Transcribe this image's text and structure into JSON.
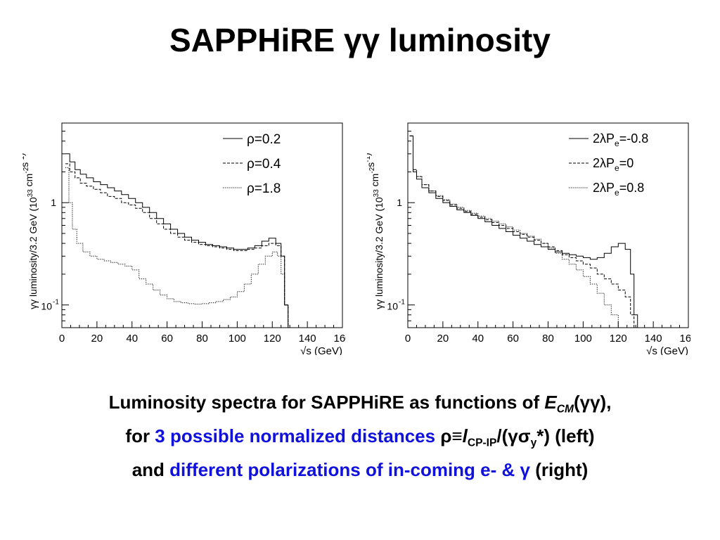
{
  "title": "SAPPHiRE γγ luminosity",
  "caption": {
    "line1_a": "Luminosity spectra for SAPPHiRE as functions of ",
    "line1_ecm": "E",
    "line1_ecm_sub": "CM",
    "line1_b": "(γγ),",
    "line2_a": "for ",
    "line2_hl": "3 possible normalized distances",
    "line2_rho": " ρ≡",
    "line2_l": "l",
    "line2_l_sub": "CP-IP",
    "line2_b": "/(γσ",
    "line2_sig_sub": "y",
    "line2_c": "*) (left)",
    "line3_a": "and ",
    "line3_hl": "different polarizations of in-coming e- & γ",
    "line3_b": " (right)"
  },
  "chart_data": [
    {
      "type": "line",
      "ylabel_main": "γγ luminosity/3.2 GeV (10",
      "ylabel_exp1": "33",
      "ylabel_mid": " cm",
      "ylabel_exp2": "-2",
      "ylabel_mid2": "s",
      "ylabel_exp3": "-1",
      "ylabel_end": ")",
      "xlabel": "√s (GeV)",
      "xlim": [
        0,
        160
      ],
      "ylog": true,
      "ytick_1": "1",
      "ytick_m1": "10",
      "ytick_m1_exp": "-1",
      "xticks": [
        "0",
        "20",
        "40",
        "60",
        "80",
        "100",
        "120",
        "140",
        "160"
      ],
      "series": [
        {
          "name": "ρ=0.2",
          "style": "solid",
          "x": [
            3,
            6,
            9,
            12,
            16,
            20,
            24,
            28,
            32,
            36,
            40,
            44,
            48,
            52,
            56,
            60,
            64,
            68,
            72,
            76,
            80,
            84,
            88,
            92,
            96,
            100,
            104,
            108,
            112,
            116,
            120,
            124,
            126,
            128,
            130
          ],
          "y": [
            3.0,
            2.5,
            2.1,
            1.9,
            1.75,
            1.6,
            1.5,
            1.4,
            1.3,
            1.2,
            1.1,
            1.0,
            0.9,
            0.8,
            0.7,
            0.62,
            0.55,
            0.5,
            0.46,
            0.43,
            0.41,
            0.39,
            0.38,
            0.37,
            0.36,
            0.35,
            0.35,
            0.36,
            0.38,
            0.42,
            0.45,
            0.4,
            0.3,
            0.1,
            0.05
          ]
        },
        {
          "name": "ρ=0.4",
          "style": "dashed",
          "x": [
            3,
            6,
            9,
            12,
            16,
            20,
            24,
            28,
            32,
            36,
            40,
            44,
            48,
            52,
            56,
            60,
            64,
            68,
            72,
            76,
            80,
            84,
            88,
            92,
            96,
            100,
            104,
            108,
            112,
            116,
            120,
            124,
            126,
            128,
            130
          ],
          "y": [
            2.4,
            2.0,
            1.75,
            1.55,
            1.45,
            1.35,
            1.25,
            1.15,
            1.1,
            1.0,
            0.95,
            0.88,
            0.8,
            0.7,
            0.62,
            0.55,
            0.5,
            0.46,
            0.43,
            0.41,
            0.39,
            0.38,
            0.37,
            0.36,
            0.35,
            0.34,
            0.34,
            0.35,
            0.36,
            0.38,
            0.4,
            0.38,
            0.3,
            0.1,
            0.05
          ]
        },
        {
          "name": "ρ=1.8",
          "style": "dotted",
          "x": [
            3,
            5,
            7,
            10,
            14,
            18,
            22,
            26,
            30,
            34,
            38,
            42,
            46,
            50,
            54,
            58,
            62,
            66,
            70,
            74,
            78,
            82,
            86,
            90,
            94,
            98,
            102,
            106,
            110,
            114,
            118,
            122,
            124,
            126,
            128,
            130
          ],
          "y": [
            2.2,
            1.0,
            0.55,
            0.4,
            0.33,
            0.3,
            0.28,
            0.27,
            0.26,
            0.25,
            0.24,
            0.22,
            0.18,
            0.16,
            0.14,
            0.125,
            0.115,
            0.108,
            0.105,
            0.103,
            0.102,
            0.103,
            0.105,
            0.108,
            0.113,
            0.12,
            0.135,
            0.16,
            0.2,
            0.25,
            0.3,
            0.33,
            0.3,
            0.2,
            0.1,
            0.05
          ]
        }
      ]
    },
    {
      "type": "line",
      "ylabel_main": "γγ luminosity/3.2 GeV (10",
      "ylabel_exp1": "33",
      "ylabel_mid": " cm",
      "ylabel_exp2": "-2",
      "ylabel_mid2": "s",
      "ylabel_exp3": "-1",
      "ylabel_end": ")",
      "xlabel": "√s (GeV)",
      "xlim": [
        0,
        160
      ],
      "ylog": true,
      "ytick_1": "1",
      "ytick_m1": "10",
      "ytick_m1_exp": "-1",
      "xticks": [
        "0",
        "20",
        "40",
        "60",
        "80",
        "100",
        "120",
        "140",
        "160"
      ],
      "series": [
        {
          "name": "2λPe=-0.8",
          "legend_main": "2λP",
          "legend_sub": "e",
          "legend_val": "=-0.8",
          "style": "solid",
          "x": [
            2,
            4,
            6,
            10,
            14,
            18,
            22,
            26,
            30,
            34,
            38,
            42,
            46,
            50,
            54,
            58,
            62,
            66,
            70,
            74,
            78,
            82,
            86,
            90,
            94,
            98,
            102,
            106,
            110,
            114,
            118,
            122,
            126,
            128,
            130
          ],
          "y": [
            4.5,
            2.0,
            1.7,
            1.4,
            1.25,
            1.1,
            1.0,
            0.92,
            0.85,
            0.8,
            0.75,
            0.7,
            0.65,
            0.6,
            0.56,
            0.52,
            0.48,
            0.45,
            0.42,
            0.39,
            0.37,
            0.35,
            0.33,
            0.32,
            0.31,
            0.3,
            0.29,
            0.28,
            0.29,
            0.32,
            0.37,
            0.4,
            0.35,
            0.2,
            0.08
          ]
        },
        {
          "name": "2λPe=0",
          "legend_main": "2λP",
          "legend_sub": "e",
          "legend_val": "=0",
          "style": "dashed",
          "x": [
            2,
            4,
            6,
            10,
            14,
            18,
            22,
            26,
            30,
            34,
            38,
            42,
            46,
            50,
            54,
            58,
            62,
            66,
            70,
            74,
            78,
            82,
            86,
            90,
            94,
            98,
            102,
            106,
            110,
            114,
            118,
            122,
            126,
            128
          ],
          "y": [
            4.5,
            2.1,
            1.8,
            1.5,
            1.3,
            1.15,
            1.05,
            0.95,
            0.88,
            0.82,
            0.77,
            0.72,
            0.68,
            0.64,
            0.6,
            0.56,
            0.52,
            0.49,
            0.46,
            0.43,
            0.4,
            0.37,
            0.34,
            0.31,
            0.29,
            0.27,
            0.25,
            0.23,
            0.2,
            0.18,
            0.16,
            0.14,
            0.12,
            0.08
          ]
        },
        {
          "name": "2λPe=0.8",
          "legend_main": "2λP",
          "legend_sub": "e",
          "legend_val": "=0.8",
          "style": "dotted",
          "x": [
            2,
            4,
            6,
            10,
            14,
            18,
            22,
            26,
            30,
            34,
            38,
            42,
            46,
            50,
            54,
            58,
            62,
            66,
            70,
            74,
            78,
            82,
            86,
            90,
            94,
            98,
            102,
            106,
            110,
            114,
            118,
            122
          ],
          "y": [
            4.5,
            2.1,
            1.8,
            1.5,
            1.3,
            1.17,
            1.07,
            0.97,
            0.9,
            0.84,
            0.79,
            0.74,
            0.7,
            0.66,
            0.62,
            0.58,
            0.54,
            0.5,
            0.47,
            0.44,
            0.4,
            0.36,
            0.32,
            0.28,
            0.25,
            0.22,
            0.19,
            0.16,
            0.13,
            0.1,
            0.08,
            0.06
          ]
        }
      ]
    }
  ]
}
